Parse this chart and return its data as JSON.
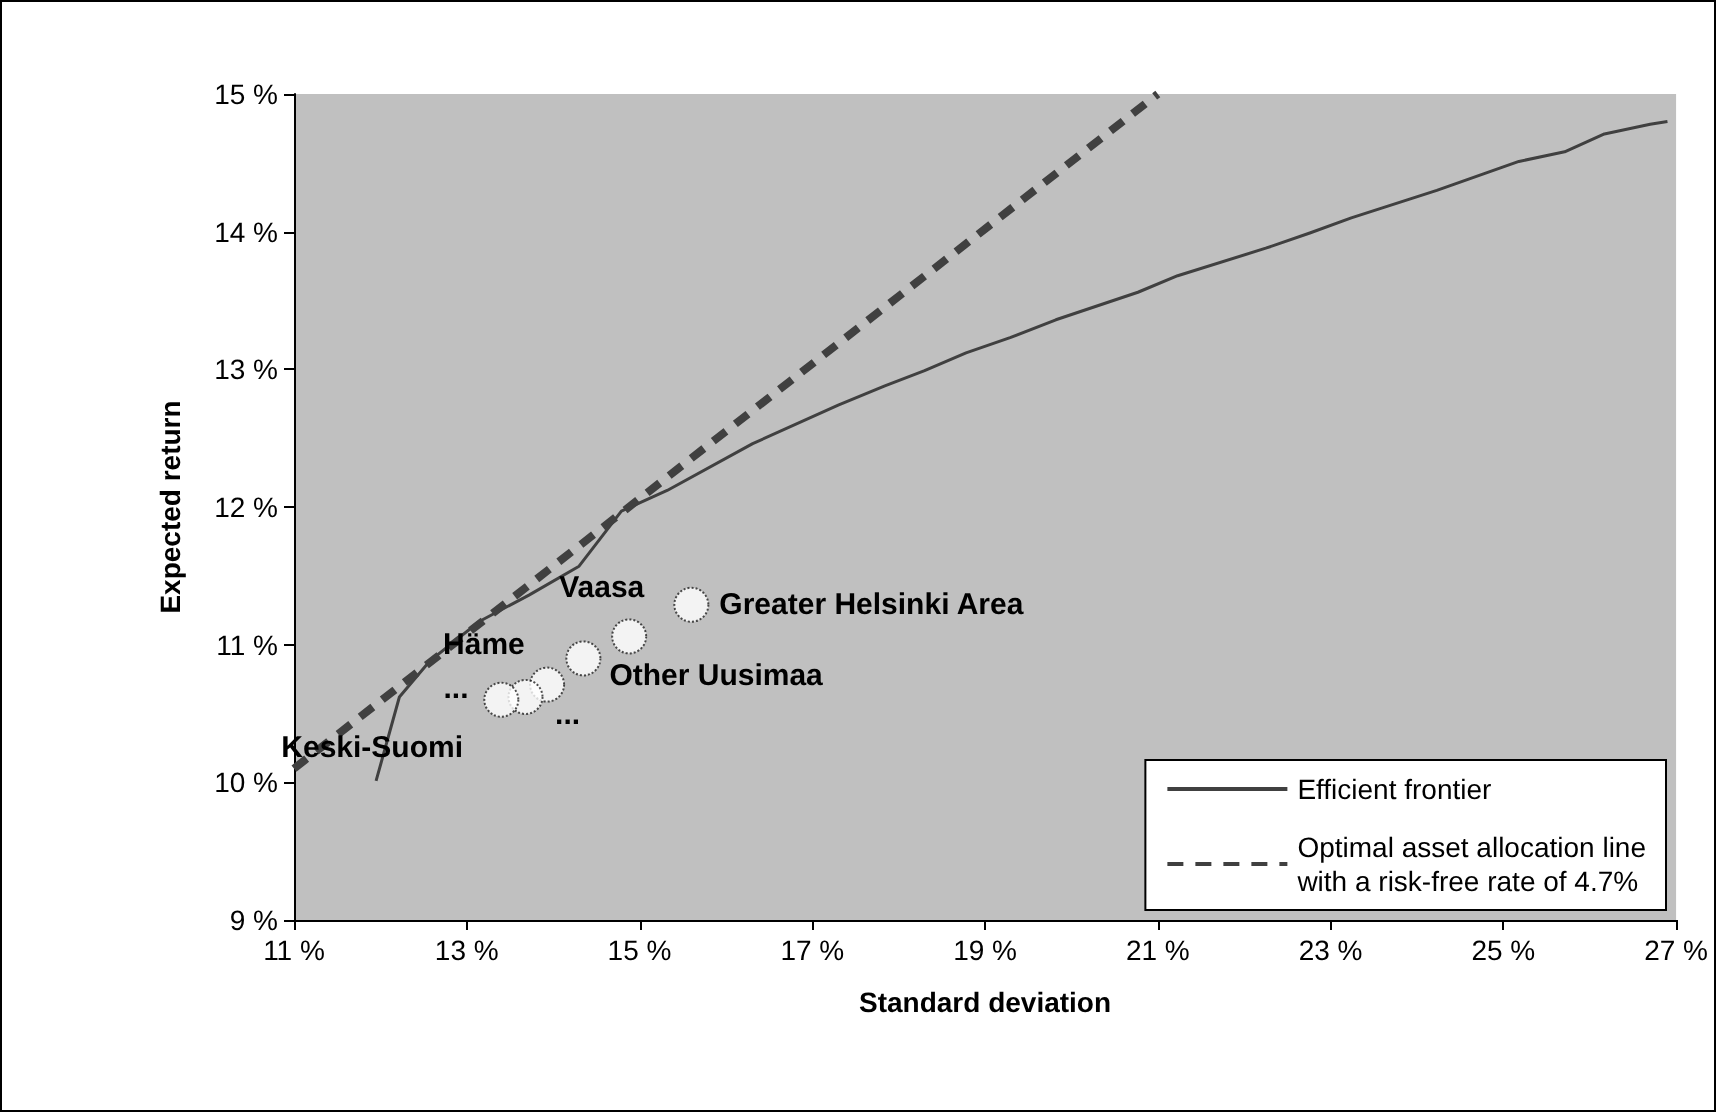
{
  "chart_data": {
    "type": "line",
    "xlabel": "Standard deviation",
    "ylabel": "Expected return",
    "xlim": [
      11,
      27
    ],
    "ylim": [
      9,
      15
    ],
    "xticks": [
      {
        "value": 11,
        "label": "11 %"
      },
      {
        "value": 13,
        "label": "13 %"
      },
      {
        "value": 15,
        "label": "15 %"
      },
      {
        "value": 17,
        "label": "17 %"
      },
      {
        "value": 19,
        "label": "19 %"
      },
      {
        "value": 21,
        "label": "21 %"
      },
      {
        "value": 23,
        "label": "23 %"
      },
      {
        "value": 25,
        "label": "25 %"
      },
      {
        "value": 27,
        "label": "27 %"
      }
    ],
    "yticks": [
      {
        "value": 9,
        "label": "9 %"
      },
      {
        "value": 10,
        "label": "10 %"
      },
      {
        "value": 11,
        "label": "11 %"
      },
      {
        "value": 12,
        "label": "12 %"
      },
      {
        "value": 13,
        "label": "13 %"
      },
      {
        "value": 14,
        "label": "14 %"
      },
      {
        "value": 15,
        "label": "15 %"
      }
    ],
    "grid": false,
    "legend": "bottom right",
    "series": [
      {
        "name": "Efficient frontier",
        "color": "#404040",
        "line_style": "solid",
        "marker": "none",
        "x": [
          11.95,
          12.22,
          12.57,
          13.15,
          13.72,
          14.3,
          14.79,
          15.32,
          16.31,
          17.3,
          17.84,
          18.3,
          18.78,
          19.29,
          19.82,
          20.77,
          21.23,
          22.25,
          22.76,
          23.24,
          24.23,
          25.18,
          25.71,
          26.17,
          26.7,
          26.9
        ],
        "values": [
          10.01,
          10.62,
          10.88,
          11.17,
          11.36,
          11.57,
          11.97,
          12.12,
          12.46,
          12.74,
          12.88,
          12.99,
          13.12,
          13.23,
          13.36,
          13.56,
          13.68,
          13.88,
          13.99,
          14.1,
          14.3,
          14.51,
          14.58,
          14.71,
          14.78,
          14.8
        ]
      },
      {
        "name": "Optimal asset allocation line\nwith a risk-free rate of 4.7%",
        "color": "#404040",
        "line_style": "dashed",
        "marker": "none",
        "x": [
          11.0,
          16.0,
          21.0
        ],
        "values": [
          10.1,
          12.55,
          15.0
        ]
      },
      {
        "type": "scatter",
        "color": "#ffffff",
        "marker": "circle",
        "x": [
          15.6,
          14.88,
          14.35,
          13.93,
          13.68,
          13.4
        ],
        "values": [
          11.29,
          11.06,
          10.9,
          10.71,
          10.62,
          10.6
        ]
      }
    ],
    "annotations": [
      {
        "text": "Vaasa",
        "x": 14.88,
        "y": 11.06
      },
      {
        "text": "Greater Helsinki Area",
        "x": 15.6,
        "y": 11.29
      },
      {
        "text": "Häme",
        "x": 13.93,
        "y": 10.71
      },
      {
        "text": "Other Uusimaa",
        "x": 14.35,
        "y": 10.9
      },
      {
        "text": "Keski-Suomi",
        "x": 13.4,
        "y": 10.6
      },
      {
        "text": "...",
        "x": 13.68,
        "y": 10.62
      },
      {
        "text": "...",
        "x": 13.93,
        "y": 10.71
      }
    ]
  }
}
